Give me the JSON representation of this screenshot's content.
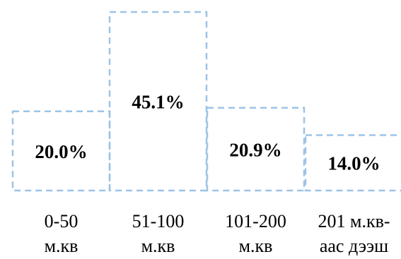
{
  "chart_data": {
    "type": "bar",
    "title": "",
    "xlabel": "",
    "ylabel": "",
    "categories": [
      [
        "0-50",
        "м.кв"
      ],
      [
        "51-100",
        "м.кв"
      ],
      [
        "101-200",
        "м.кв"
      ],
      [
        "201 м.кв-",
        "аас дээш"
      ]
    ],
    "values": [
      20.0,
      45.1,
      20.9,
      14.0
    ],
    "value_labels": [
      "20.0%",
      "45.1%",
      "20.9%",
      "14.0%"
    ],
    "unit": "%",
    "ylim": [
      0,
      45.1
    ],
    "grid": false,
    "legend": "none",
    "style": {
      "bar_outline": "#9dc3e6",
      "bar_fill": "none",
      "text_color": "#000000"
    }
  }
}
